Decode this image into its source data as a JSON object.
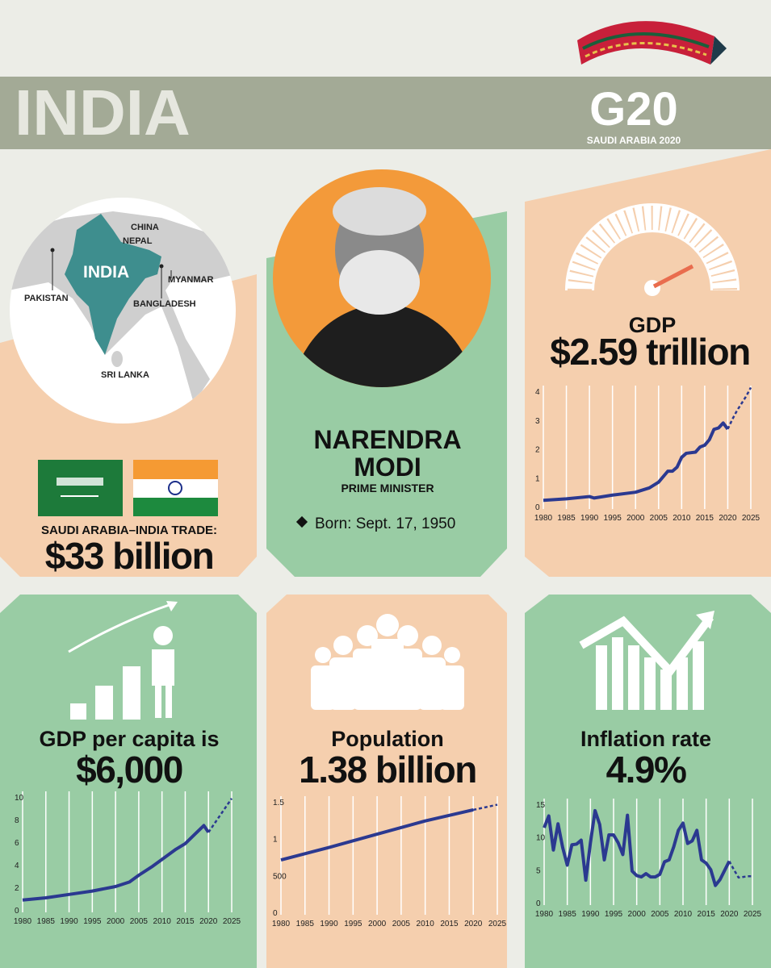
{
  "header": {
    "title": "INDIA",
    "logo": "G20",
    "logo_sub": "SAUDI ARABIA 2020"
  },
  "map": {
    "labels": [
      "CHINA",
      "NEPAL",
      "INDIA",
      "PAKISTAN",
      "MYANMAR",
      "BANGLADESH",
      "SRI LANKA"
    ]
  },
  "trade": {
    "label": "SAUDI ARABIA–INDIA TRADE:",
    "value": "$33 billion"
  },
  "leader": {
    "first": "NARENDRA",
    "last": "MODI",
    "role": "PRIME MINISTER",
    "born": "Born: Sept. 17, 1950"
  },
  "chart_data": [
    {
      "type": "line",
      "title": "GDP",
      "subtitle": "$2.59 trillion",
      "grid": true,
      "xlim": [
        1980,
        2025
      ],
      "xticks": [
        1980,
        1985,
        1990,
        1995,
        2000,
        2005,
        2010,
        2015,
        2020,
        2025
      ],
      "ylim": [
        0,
        4
      ],
      "yticks": [
        0,
        1,
        2,
        3,
        4
      ],
      "series": [
        {
          "color": "#2b3990",
          "dashed": false,
          "x": [
            1980,
            1985,
            1990,
            1991,
            1995,
            2000,
            2003,
            2005,
            2007,
            2008,
            2009,
            2010,
            2011,
            2013,
            2014,
            2015,
            2016,
            2017,
            2018,
            2019,
            2020
          ],
          "values": [
            0.19,
            0.24,
            0.32,
            0.27,
            0.37,
            0.47,
            0.62,
            0.82,
            1.2,
            1.2,
            1.34,
            1.68,
            1.82,
            1.86,
            2.04,
            2.1,
            2.29,
            2.65,
            2.7,
            2.87,
            2.66
          ]
        },
        {
          "color": "#2b3990",
          "dashed": true,
          "x": [
            2020,
            2021,
            2022,
            2023,
            2024,
            2025
          ],
          "values": [
            2.66,
            3.0,
            3.3,
            3.55,
            3.8,
            4.1
          ]
        }
      ]
    },
    {
      "type": "line",
      "title": "GDP per capita is",
      "subtitle": "$6,000",
      "grid": true,
      "xlim": [
        1980,
        2025
      ],
      "xticks": [
        1980,
        1985,
        1990,
        1995,
        2000,
        2005,
        2010,
        2015,
        2020,
        2025
      ],
      "ylim": [
        0,
        10
      ],
      "yticks": [
        0,
        2,
        4,
        6,
        8,
        10
      ],
      "series": [
        {
          "color": "#2b3990",
          "dashed": false,
          "x": [
            1980,
            1985,
            1990,
            1995,
            2000,
            2003,
            2005,
            2008,
            2010,
            2013,
            2015,
            2017,
            2019,
            2020
          ],
          "values": [
            0.8,
            1.0,
            1.3,
            1.6,
            2.0,
            2.4,
            3.0,
            3.8,
            4.4,
            5.3,
            5.8,
            6.6,
            7.4,
            6.8
          ]
        },
        {
          "color": "#2b3990",
          "dashed": true,
          "x": [
            2020,
            2022,
            2025
          ],
          "values": [
            6.8,
            8.0,
            9.8
          ]
        }
      ]
    },
    {
      "type": "line",
      "title": "Population",
      "subtitle": "1.38 billion",
      "grid": true,
      "xlim": [
        1980,
        2025
      ],
      "xticks": [
        1980,
        1985,
        1990,
        1995,
        2000,
        2005,
        2010,
        2015,
        2020,
        2025
      ],
      "ylim": [
        0,
        1500
      ],
      "yticks": [
        0,
        500,
        {
          "value": 1000,
          "label": "1"
        },
        {
          "value": 1500,
          "label": "1.5"
        }
      ],
      "series": [
        {
          "color": "#2b3990",
          "dashed": false,
          "x": [
            1980,
            1990,
            2000,
            2010,
            2020
          ],
          "values": [
            700,
            870,
            1050,
            1230,
            1380
          ]
        },
        {
          "color": "#2b3990",
          "dashed": true,
          "x": [
            2020,
            2025
          ],
          "values": [
            1380,
            1450
          ]
        }
      ]
    },
    {
      "type": "line",
      "title": "Inflation rate",
      "subtitle": "4.9%",
      "grid": true,
      "xlim": [
        1980,
        2025
      ],
      "xticks": [
        1980,
        1985,
        1990,
        1995,
        2000,
        2005,
        2010,
        2015,
        2020,
        2025
      ],
      "ylim": [
        0,
        15
      ],
      "yticks": [
        0,
        5,
        10,
        15
      ],
      "series": [
        {
          "color": "#2b3990",
          "dashed": false,
          "x": [
            1980,
            1981,
            1982,
            1983,
            1984,
            1985,
            1986,
            1987,
            1988,
            1989,
            1990,
            1991,
            1992,
            1993,
            1994,
            1995,
            1996,
            1997,
            1998,
            1999,
            2000,
            2001,
            2002,
            2003,
            2004,
            2005,
            2006,
            2007,
            2008,
            2009,
            2010,
            2011,
            2012,
            2013,
            2014,
            2015,
            2016,
            2017,
            2018,
            2019,
            2020
          ],
          "values": [
            11.3,
            13.1,
            7.9,
            11.9,
            8.3,
            5.6,
            8.7,
            8.8,
            9.4,
            3.3,
            9.0,
            13.9,
            11.8,
            6.4,
            10.2,
            10.2,
            9.0,
            7.2,
            13.2,
            4.7,
            4.0,
            3.8,
            4.3,
            3.8,
            3.8,
            4.2,
            6.1,
            6.4,
            8.4,
            10.9,
            12.0,
            8.9,
            9.3,
            10.9,
            6.4,
            5.9,
            4.9,
            2.5,
            3.4,
            4.8,
            6.2
          ]
        },
        {
          "color": "#2b3990",
          "dashed": true,
          "x": [
            2020,
            2021,
            2022,
            2023,
            2024,
            2025
          ],
          "values": [
            6.2,
            4.9,
            3.7,
            3.8,
            3.9,
            3.9
          ]
        }
      ]
    }
  ]
}
